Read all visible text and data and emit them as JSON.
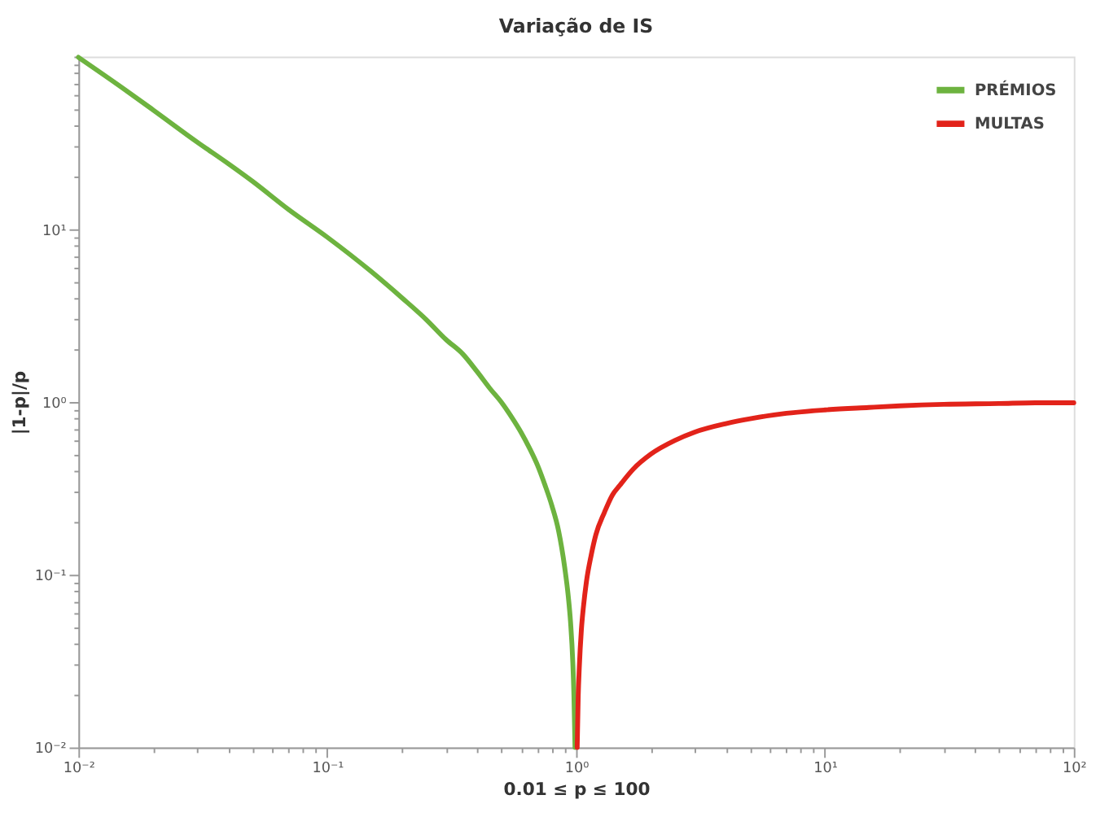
{
  "chart_data": {
    "type": "line",
    "title": "Variação de IS",
    "xlabel": "0.01 ≤ p ≤ 100",
    "ylabel": "|1-p|/p",
    "log": "xy",
    "grid": false,
    "legend": "top right",
    "xlim": [
      0.01,
      100
    ],
    "ylim": [
      0.01,
      100
    ],
    "xticks": [
      {
        "value": 0.01,
        "label": "10⁻²"
      },
      {
        "value": 0.02,
        "label": null
      },
      {
        "value": 0.03,
        "label": null
      },
      {
        "value": 0.04,
        "label": null
      },
      {
        "value": 0.05,
        "label": null
      },
      {
        "value": 0.06,
        "label": null
      },
      {
        "value": 0.07,
        "label": null
      },
      {
        "value": 0.08,
        "label": null
      },
      {
        "value": 0.09,
        "label": null
      },
      {
        "value": 0.1,
        "label": "10⁻¹"
      },
      {
        "value": 0.2,
        "label": null
      },
      {
        "value": 0.3,
        "label": null
      },
      {
        "value": 0.4,
        "label": null
      },
      {
        "value": 0.5,
        "label": null
      },
      {
        "value": 0.6,
        "label": null
      },
      {
        "value": 0.7,
        "label": null
      },
      {
        "value": 0.8,
        "label": null
      },
      {
        "value": 0.9,
        "label": null
      },
      {
        "value": 1,
        "label": "10⁰"
      },
      {
        "value": 2,
        "label": null
      },
      {
        "value": 3,
        "label": null
      },
      {
        "value": 4,
        "label": null
      },
      {
        "value": 5,
        "label": null
      },
      {
        "value": 6,
        "label": null
      },
      {
        "value": 7,
        "label": null
      },
      {
        "value": 8,
        "label": null
      },
      {
        "value": 9,
        "label": null
      },
      {
        "value": 10,
        "label": "10¹"
      },
      {
        "value": 20,
        "label": null
      },
      {
        "value": 30,
        "label": null
      },
      {
        "value": 40,
        "label": null
      },
      {
        "value": 50,
        "label": null
      },
      {
        "value": 60,
        "label": null
      },
      {
        "value": 70,
        "label": null
      },
      {
        "value": 80,
        "label": null
      },
      {
        "value": 90,
        "label": null
      },
      {
        "value": 100,
        "label": "10²"
      }
    ],
    "yticks": [
      {
        "value": 0.01,
        "label": "10⁻²"
      },
      {
        "value": 0.02,
        "label": null
      },
      {
        "value": 0.03,
        "label": null
      },
      {
        "value": 0.04,
        "label": null
      },
      {
        "value": 0.05,
        "label": null
      },
      {
        "value": 0.06,
        "label": null
      },
      {
        "value": 0.07,
        "label": null
      },
      {
        "value": 0.08,
        "label": null
      },
      {
        "value": 0.09,
        "label": null
      },
      {
        "value": 0.1,
        "label": "10⁻¹"
      },
      {
        "value": 0.2,
        "label": null
      },
      {
        "value": 0.3,
        "label": null
      },
      {
        "value": 0.4,
        "label": null
      },
      {
        "value": 0.5,
        "label": null
      },
      {
        "value": 0.6,
        "label": null
      },
      {
        "value": 0.7,
        "label": null
      },
      {
        "value": 0.8,
        "label": null
      },
      {
        "value": 0.9,
        "label": null
      },
      {
        "value": 1,
        "label": "10⁰"
      },
      {
        "value": 2,
        "label": null
      },
      {
        "value": 3,
        "label": null
      },
      {
        "value": 4,
        "label": null
      },
      {
        "value": 5,
        "label": null
      },
      {
        "value": 6,
        "label": null
      },
      {
        "value": 7,
        "label": null
      },
      {
        "value": 8,
        "label": null
      },
      {
        "value": 9,
        "label": null
      },
      {
        "value": 10,
        "label": "10¹"
      },
      {
        "value": 20,
        "label": null
      },
      {
        "value": 30,
        "label": null
      },
      {
        "value": 40,
        "label": null
      },
      {
        "value": 50,
        "label": null
      },
      {
        "value": 60,
        "label": null
      },
      {
        "value": 70,
        "label": null
      },
      {
        "value": 80,
        "label": null
      },
      {
        "value": 90,
        "label": null
      },
      {
        "value": 100,
        "label": null
      }
    ],
    "series": [
      {
        "name": "PRÉMIOS",
        "color": "#6db33f",
        "x": [
          0.01,
          0.015,
          0.02,
          0.03,
          0.04,
          0.05,
          0.07,
          0.1,
          0.15,
          0.2,
          0.25,
          0.3,
          0.35,
          0.4,
          0.45,
          0.5,
          0.55,
          0.6,
          0.65,
          0.7,
          0.75,
          0.8,
          0.85,
          0.9,
          0.93,
          0.95,
          0.97,
          0.98,
          0.99
        ],
        "values": [
          99,
          66,
          49,
          32,
          24,
          19,
          13,
          9,
          5.7,
          4,
          3,
          2.3,
          1.9,
          1.5,
          1.2,
          1,
          0.82,
          0.67,
          0.54,
          0.43,
          0.33,
          0.25,
          0.18,
          0.11,
          0.075,
          0.053,
          0.031,
          0.02,
          0.01
        ]
      },
      {
        "name": "MULTAS",
        "color": "#e2231a",
        "x": [
          1.01,
          1.02,
          1.03,
          1.05,
          1.07,
          1.1,
          1.15,
          1.2,
          1.3,
          1.4,
          1.5,
          1.7,
          2,
          2.5,
          3,
          4,
          5,
          7,
          10,
          15,
          20,
          30,
          50,
          70,
          100
        ],
        "values": [
          0.01,
          0.02,
          0.029,
          0.048,
          0.065,
          0.091,
          0.13,
          0.17,
          0.23,
          0.29,
          0.33,
          0.41,
          0.5,
          0.6,
          0.67,
          0.75,
          0.8,
          0.86,
          0.9,
          0.93,
          0.95,
          0.97,
          0.98,
          0.99,
          0.99
        ]
      }
    ]
  }
}
